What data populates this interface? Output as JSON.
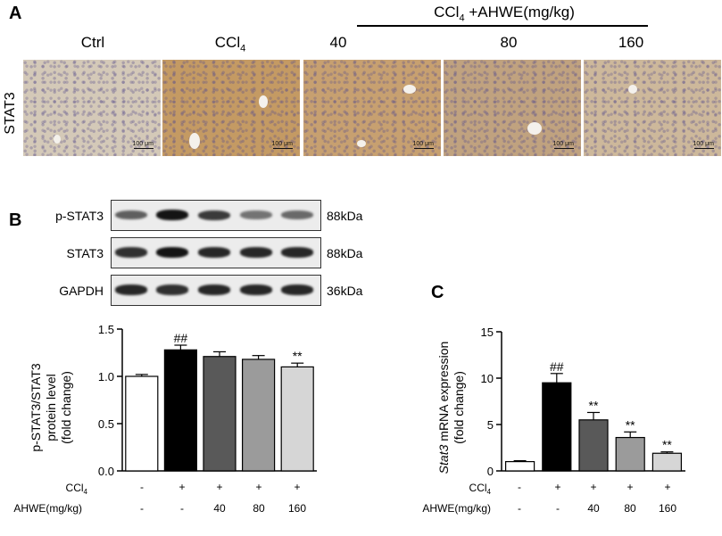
{
  "panel_a": {
    "letter": "A",
    "row_label": "STAT3",
    "group_label_main": "CCl",
    "group_label_sub": "4",
    "group_label_rest": " +AHWE(mg/kg)",
    "columns": [
      {
        "label": "Ctrl",
        "sub": ""
      },
      {
        "label": "CCl",
        "sub": "4"
      },
      {
        "label": "40",
        "sub": ""
      },
      {
        "label": "80",
        "sub": ""
      },
      {
        "label": "160",
        "sub": ""
      }
    ],
    "scale_label": "100 μm",
    "tint_colors": [
      "#d4c9b8",
      "#c49a63",
      "#c7a070",
      "#c0a27f",
      "#cdb89b"
    ]
  },
  "panel_b": {
    "letter": "B",
    "blots": [
      {
        "protein": "p-STAT3",
        "size": "88kDa",
        "intensities": [
          0.55,
          0.95,
          0.75,
          0.45,
          0.5
        ]
      },
      {
        "protein": "STAT3",
        "size": "88kDa",
        "intensities": [
          0.8,
          0.95,
          0.85,
          0.85,
          0.85
        ]
      },
      {
        "protein": "GAPDH",
        "size": "36kDa",
        "intensities": [
          0.85,
          0.8,
          0.85,
          0.85,
          0.85
        ]
      }
    ],
    "treatment": {
      "ccl4_label": "CCl",
      "ccl4_sub": "4",
      "ccl4_values": [
        "-",
        "+",
        "+",
        "+",
        "+"
      ],
      "ahwe_label": "AHWE(mg/kg)",
      "ahwe_values": [
        "-",
        "-",
        "40",
        "80",
        "160"
      ]
    }
  },
  "panel_c": {
    "letter": "C",
    "treatment": {
      "ccl4_label": "CCl",
      "ccl4_sub": "4",
      "ccl4_values": [
        "-",
        "+",
        "+",
        "+",
        "+"
      ],
      "ahwe_label": "AHWE(mg/kg)",
      "ahwe_values": [
        "-",
        "-",
        "40",
        "80",
        "160"
      ]
    }
  },
  "chart_data": [
    {
      "type": "bar",
      "panel": "B",
      "ylabel_lines": [
        "p-STAT3/STAT3",
        "protein level",
        "(fold change)"
      ],
      "ylim": [
        0,
        1.5
      ],
      "yticks": [
        "0.0",
        "0.5",
        "1.0",
        "1.5"
      ],
      "values": [
        1.0,
        1.28,
        1.21,
        1.18,
        1.1
      ],
      "errors": [
        0.02,
        0.05,
        0.05,
        0.04,
        0.04
      ],
      "fills": [
        "#ffffff",
        "#000000",
        "#595959",
        "#9b9b9b",
        "#d6d6d6"
      ],
      "annotations": [
        "",
        "##",
        "",
        "",
        "**"
      ],
      "grid": false
    },
    {
      "type": "bar",
      "panel": "C",
      "ylabel_italic": "Stat3",
      "ylabel_rest": " mRNA expression",
      "ylabel_line2": "(fold change)",
      "ylim": [
        0,
        15
      ],
      "yticks": [
        "0",
        "5",
        "10",
        "15"
      ],
      "values": [
        1.0,
        9.5,
        5.5,
        3.6,
        1.9
      ],
      "errors": [
        0.1,
        1.0,
        0.8,
        0.6,
        0.15
      ],
      "fills": [
        "#ffffff",
        "#000000",
        "#595959",
        "#9b9b9b",
        "#d6d6d6"
      ],
      "annotations": [
        "",
        "##",
        "**",
        "**",
        "**"
      ],
      "grid": false
    }
  ]
}
